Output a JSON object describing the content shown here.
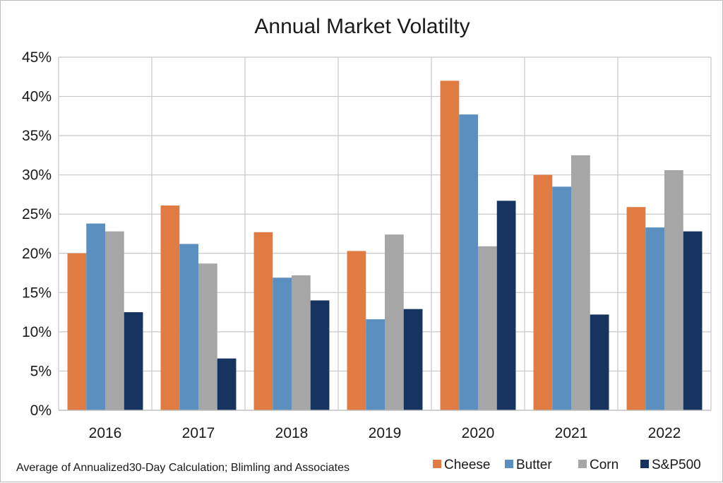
{
  "chart_data": {
    "type": "bar",
    "title": "Annual Market Volatilty",
    "xlabel": "",
    "ylabel": "",
    "categories": [
      "2016",
      "2017",
      "2018",
      "2019",
      "2020",
      "2021",
      "2022"
    ],
    "ylim": [
      0,
      45
    ],
    "yticks": [
      "0%",
      "5%",
      "10%",
      "15%",
      "20%",
      "25%",
      "30%",
      "35%",
      "40%",
      "45%"
    ],
    "grid": true,
    "legend_position": "bottom-right",
    "note": "Average of Annualized30-Day Calculation; Blimling and Associates",
    "series": [
      {
        "name": "Cheese",
        "color": "#e07b42",
        "values": [
          20.0,
          26.1,
          22.7,
          20.3,
          42.0,
          30.0,
          25.9
        ]
      },
      {
        "name": "Butter",
        "color": "#5b8fbf",
        "values": [
          23.8,
          21.2,
          16.9,
          11.6,
          37.7,
          28.5,
          23.3
        ]
      },
      {
        "name": "Corn",
        "color": "#a6a6a6",
        "values": [
          22.8,
          18.7,
          17.2,
          22.4,
          20.9,
          32.5,
          30.6
        ]
      },
      {
        "name": "S&P500",
        "color": "#17335f",
        "values": [
          12.5,
          6.6,
          14.0,
          12.9,
          26.7,
          12.2,
          22.8
        ]
      }
    ]
  }
}
